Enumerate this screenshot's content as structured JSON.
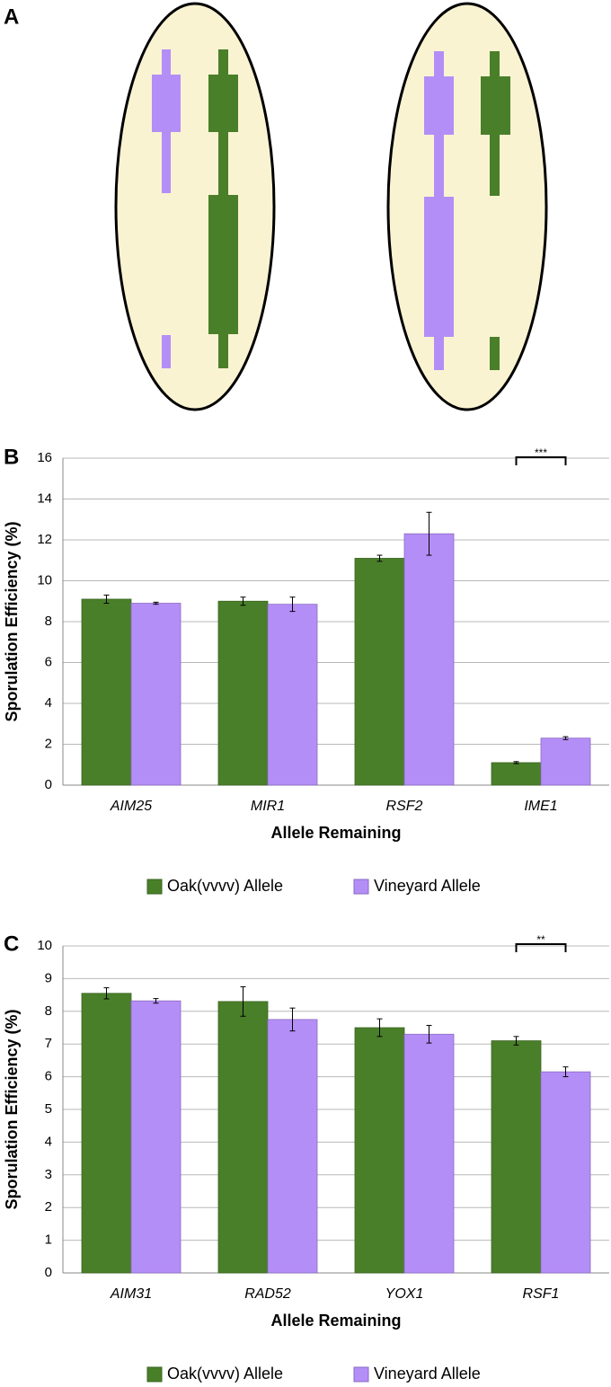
{
  "panel_a": {
    "label": "A"
  },
  "chart_data": [
    {
      "type": "bar",
      "panel": "B",
      "y_label": "Sporulation Efficiency (%)",
      "x_label": "Allele Remaining",
      "categories": [
        "AIM25",
        "MIR1",
        "RSF2",
        "IME1"
      ],
      "series": [
        {
          "name": "Oak(vvvv) Allele",
          "color": "#4a7f2a",
          "values": [
            9.1,
            9.0,
            11.1,
            1.1
          ],
          "errors": [
            0.2,
            0.2,
            0.15,
            0.05
          ]
        },
        {
          "name": "Vineyard Allele",
          "color": "#b48ef7",
          "values": [
            8.9,
            8.85,
            12.3,
            2.3
          ],
          "errors": [
            0.05,
            0.35,
            1.05,
            0.07
          ]
        }
      ],
      "ylim": [
        0,
        16
      ],
      "yticks": [
        0,
        2,
        4,
        6,
        8,
        10,
        12,
        14,
        16
      ],
      "grid": true,
      "significance": [
        {
          "category": "IME1",
          "text": "***"
        }
      ]
    },
    {
      "type": "bar",
      "panel": "C",
      "y_label": "Sporulation Efficiency (%)",
      "x_label": "Allele Remaining",
      "categories": [
        "AIM31",
        "RAD52",
        "YOX1",
        "RSF1"
      ],
      "series": [
        {
          "name": "Oak(vvvv) Allele",
          "color": "#4a7f2a",
          "values": [
            8.55,
            8.3,
            7.5,
            7.1
          ],
          "errors": [
            0.17,
            0.45,
            0.27,
            0.13
          ]
        },
        {
          "name": "Vineyard Allele",
          "color": "#b48ef7",
          "values": [
            8.32,
            7.75,
            7.3,
            6.15
          ],
          "errors": [
            0.07,
            0.35,
            0.27,
            0.15
          ]
        }
      ],
      "ylim": [
        0,
        10
      ],
      "yticks": [
        0,
        1,
        2,
        3,
        4,
        5,
        6,
        7,
        8,
        9,
        10
      ],
      "grid": true,
      "significance": [
        {
          "category": "RSF1",
          "text": "**"
        }
      ]
    }
  ]
}
